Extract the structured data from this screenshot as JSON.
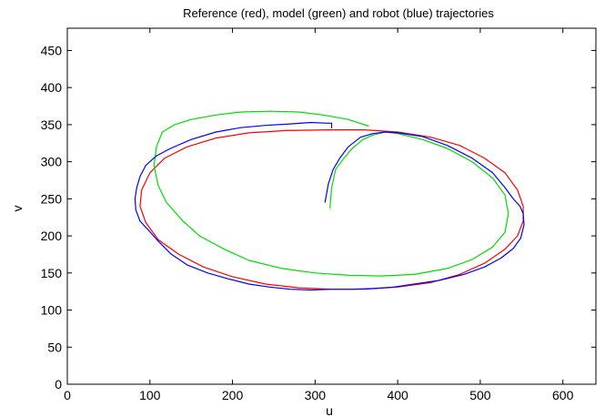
{
  "chart_data": {
    "type": "line",
    "title": "Reference (red), model (green) and robot (blue) trajectories",
    "xlabel": "u",
    "ylabel": "v",
    "xlim": [
      0,
      640
    ],
    "ylim": [
      0,
      480
    ],
    "xticks": [
      "0",
      "100",
      "200",
      "300",
      "400",
      "500",
      "600"
    ],
    "yticks": [
      "0",
      "50",
      "100",
      "150",
      "200",
      "250",
      "300",
      "350",
      "400",
      "450"
    ],
    "grid": false,
    "series": [
      {
        "name": "Reference",
        "color": "#ff0000",
        "closed": true,
        "x": [
          318,
          360,
          400,
          440,
          475,
          505,
          530,
          545,
          552,
          552,
          545,
          530,
          505,
          475,
          440,
          400,
          360,
          320,
          280,
          240,
          200,
          165,
          135,
          110,
          95,
          88,
          90,
          100,
          118,
          145,
          180,
          220,
          265,
          318
        ],
        "y": [
          343,
          343,
          340,
          333,
          322,
          305,
          285,
          262,
          240,
          220,
          200,
          182,
          163,
          148,
          137,
          131,
          128,
          128,
          130,
          135,
          145,
          158,
          175,
          195,
          218,
          240,
          262,
          285,
          305,
          320,
          332,
          339,
          342,
          343
        ]
      },
      {
        "name": "Model",
        "color": "#00dd00",
        "closed": false,
        "x": [
          318,
          320,
          325,
          335,
          345,
          358,
          370,
          385,
          400,
          430,
          460,
          490,
          515,
          530,
          534,
          530,
          515,
          490,
          460,
          420,
          380,
          340,
          300,
          260,
          220,
          190,
          160,
          140,
          120,
          110,
          105,
          108,
          115,
          130,
          150,
          180,
          210,
          245,
          280,
          310,
          340,
          365
        ],
        "y": [
          237,
          265,
          290,
          305,
          318,
          330,
          336,
          340,
          338,
          330,
          318,
          300,
          278,
          255,
          230,
          205,
          185,
          168,
          156,
          148,
          146,
          147,
          150,
          156,
          167,
          182,
          200,
          220,
          245,
          268,
          295,
          320,
          340,
          350,
          357,
          363,
          367,
          368,
          367,
          363,
          357,
          348
        ]
      },
      {
        "name": "Robot",
        "color": "#0000ff",
        "closed": false,
        "x": [
          312,
          316,
          322,
          330,
          340,
          355,
          370,
          385,
          400,
          430,
          460,
          490,
          515,
          530,
          540,
          548,
          552,
          553,
          549,
          540,
          525,
          505,
          480,
          450,
          420,
          395,
          370,
          345,
          320,
          295,
          270,
          245,
          220,
          195,
          170,
          145,
          125,
          110,
          98,
          88,
          83,
          82,
          84,
          88,
          95,
          108,
          125,
          150,
          180,
          210,
          240,
          270,
          295,
          315,
          320,
          320
        ],
        "y": [
          245,
          270,
          290,
          305,
          320,
          333,
          338,
          340,
          339,
          334,
          322,
          305,
          285,
          265,
          250,
          240,
          230,
          215,
          197,
          183,
          170,
          158,
          148,
          140,
          135,
          131,
          129,
          128,
          128,
          127,
          128,
          131,
          135,
          142,
          150,
          161,
          176,
          193,
          208,
          220,
          235,
          250,
          265,
          280,
          295,
          308,
          318,
          330,
          340,
          346,
          349,
          351,
          353,
          352,
          352,
          345
        ]
      }
    ]
  }
}
